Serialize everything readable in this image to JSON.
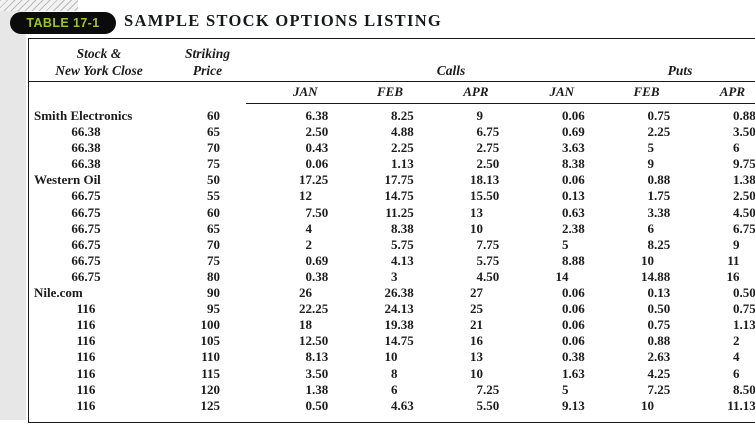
{
  "badge": {
    "label": "TABLE 17-1"
  },
  "title": "SAMPLE STOCK OPTIONS LISTING",
  "colors": {
    "badge_bg": "#0b0b0b",
    "badge_text": "#9dc41e",
    "text": "#1c1c1c",
    "page_edge_strip": "#e7e7e7",
    "rule": "#1a1a1a"
  },
  "table": {
    "col_headers": {
      "stock_line1": "Stock &",
      "stock_line2": "New York Close",
      "strike_line1": "Striking",
      "strike_line2": "Price",
      "calls_group": "Calls",
      "puts_group": "Puts",
      "months": [
        "JAN",
        "FEB",
        "APR",
        "JAN",
        "FEB",
        "APR"
      ]
    },
    "rows": [
      [
        "Smith Electronics",
        "60",
        "6.38",
        "8.25",
        "9",
        "0.06",
        "0.75",
        "0.88"
      ],
      [
        "66.38",
        "65",
        "2.50",
        "4.88",
        "6.75",
        "0.69",
        "2.25",
        "3.50"
      ],
      [
        "66.38",
        "70",
        "0.43",
        "2.25",
        "2.75",
        "3.63",
        "5",
        "6"
      ],
      [
        "66.38",
        "75",
        "0.06",
        "1.13",
        "2.50",
        "8.38",
        "9",
        "9.75"
      ],
      [
        "Western Oil",
        "50",
        "17.25",
        "17.75",
        "18.13",
        "0.06",
        "0.88",
        "1.38"
      ],
      [
        "66.75",
        "55",
        "12",
        "14.75",
        "15.50",
        "0.13",
        "1.75",
        "2.50"
      ],
      [
        "66.75",
        "60",
        "7.50",
        "11.25",
        "13",
        "0.63",
        "3.38",
        "4.50"
      ],
      [
        "66.75",
        "65",
        "4",
        "8.38",
        "10",
        "2.38",
        "6",
        "6.75"
      ],
      [
        "66.75",
        "70",
        "2",
        "5.75",
        "7.75",
        "5",
        "8.25",
        "9"
      ],
      [
        "66.75",
        "75",
        "0.69",
        "4.13",
        "5.75",
        "8.88",
        "10",
        "11"
      ],
      [
        "66.75",
        "80",
        "0.38",
        "3",
        "4.50",
        "14",
        "14.88",
        "16"
      ],
      [
        "Nile.com",
        "90",
        "26",
        "26.38",
        "27",
        "0.06",
        "0.13",
        "0.50"
      ],
      [
        "116",
        "95",
        "22.25",
        "24.13",
        "25",
        "0.06",
        "0.50",
        "0.75"
      ],
      [
        "116",
        "100",
        "18",
        "19.38",
        "21",
        "0.06",
        "0.75",
        "1.13"
      ],
      [
        "116",
        "105",
        "12.50",
        "14.75",
        "16",
        "0.06",
        "0.88",
        "2"
      ],
      [
        "116",
        "110",
        "8.13",
        "10",
        "13",
        "0.38",
        "2.63",
        "4"
      ],
      [
        "116",
        "115",
        "3.50",
        "8",
        "10",
        "1.63",
        "4.25",
        "6"
      ],
      [
        "116",
        "120",
        "1.38",
        "6",
        "7.25",
        "5",
        "7.25",
        "8.50"
      ],
      [
        "116",
        "125",
        "0.50",
        "4.63",
        "5.50",
        "9.13",
        "10",
        "11.13"
      ]
    ]
  }
}
